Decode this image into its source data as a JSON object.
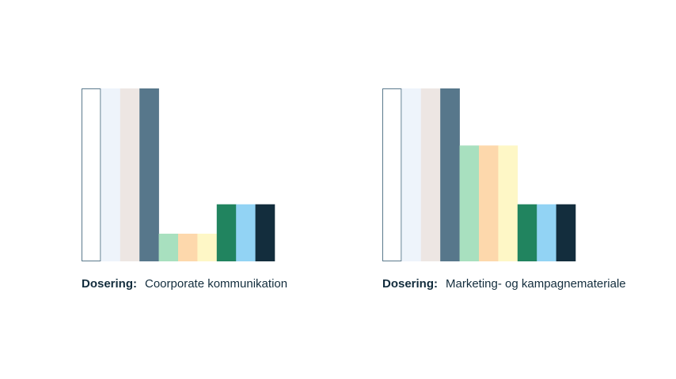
{
  "chart_data": [
    {
      "type": "bar",
      "caption_label": "Dosering:",
      "title": "Coorporate kommunikation",
      "values": [
        100,
        100,
        100,
        100,
        16,
        16,
        16,
        33,
        33,
        33
      ],
      "colors": [
        "#ffffff",
        "#eef4fb",
        "#ede6e3",
        "#57778b",
        "#a8e0bf",
        "#fdd8ac",
        "#fef7c6",
        "#21845f",
        "#92d3f4",
        "#132d3d"
      ],
      "outline_color": "#5a7a8c",
      "ylim": [
        0,
        100
      ]
    },
    {
      "type": "bar",
      "caption_label": "Dosering:",
      "title": "Marketing- og kampagnemateriale",
      "values": [
        100,
        100,
        100,
        100,
        67,
        67,
        67,
        33,
        33,
        33
      ],
      "colors": [
        "#ffffff",
        "#eef4fb",
        "#ede6e3",
        "#57778b",
        "#a8e0bf",
        "#fdd8ac",
        "#fef7c6",
        "#21845f",
        "#92d3f4",
        "#132d3d"
      ],
      "outline_color": "#5a7a8c",
      "ylim": [
        0,
        100
      ]
    }
  ]
}
